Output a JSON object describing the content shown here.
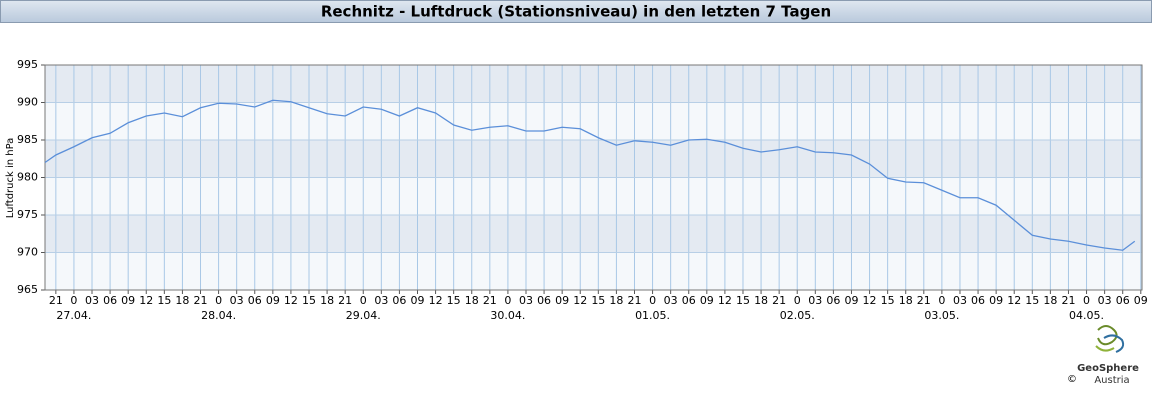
{
  "chart_data": {
    "type": "line",
    "title": "Rechnitz - Luftdruck (Stationsniveau) in den letzten 7 Tagen",
    "ylabel": "Luftdruck in hPa",
    "color": "#5b8fd9",
    "grid": true,
    "xlim": [
      -4.8,
      177.2
    ],
    "ylim": [
      965,
      995
    ],
    "yticks": [
      965,
      970,
      975,
      980,
      985,
      990,
      995
    ],
    "xticks": [
      {
        "value": -3,
        "label": "21"
      },
      {
        "value": 0,
        "label": "0"
      },
      {
        "value": 3,
        "label": "03"
      },
      {
        "value": 6,
        "label": "06"
      },
      {
        "value": 9,
        "label": "09"
      },
      {
        "value": 12,
        "label": "12"
      },
      {
        "value": 15,
        "label": "15"
      },
      {
        "value": 18,
        "label": "18"
      },
      {
        "value": 21,
        "label": "21"
      },
      {
        "value": 24,
        "label": "0"
      },
      {
        "value": 27,
        "label": "03"
      },
      {
        "value": 30,
        "label": "06"
      },
      {
        "value": 33,
        "label": "09"
      },
      {
        "value": 36,
        "label": "12"
      },
      {
        "value": 39,
        "label": "15"
      },
      {
        "value": 42,
        "label": "18"
      },
      {
        "value": 45,
        "label": "21"
      },
      {
        "value": 48,
        "label": "0"
      },
      {
        "value": 51,
        "label": "03"
      },
      {
        "value": 54,
        "label": "06"
      },
      {
        "value": 57,
        "label": "09"
      },
      {
        "value": 60,
        "label": "12"
      },
      {
        "value": 63,
        "label": "15"
      },
      {
        "value": 66,
        "label": "18"
      },
      {
        "value": 69,
        "label": "21"
      },
      {
        "value": 72,
        "label": "0"
      },
      {
        "value": 75,
        "label": "03"
      },
      {
        "value": 78,
        "label": "06"
      },
      {
        "value": 81,
        "label": "09"
      },
      {
        "value": 84,
        "label": "12"
      },
      {
        "value": 87,
        "label": "15"
      },
      {
        "value": 90,
        "label": "18"
      },
      {
        "value": 93,
        "label": "21"
      },
      {
        "value": 96,
        "label": "0"
      },
      {
        "value": 99,
        "label": "03"
      },
      {
        "value": 102,
        "label": "06"
      },
      {
        "value": 105,
        "label": "09"
      },
      {
        "value": 108,
        "label": "12"
      },
      {
        "value": 111,
        "label": "15"
      },
      {
        "value": 114,
        "label": "18"
      },
      {
        "value": 117,
        "label": "21"
      },
      {
        "value": 120,
        "label": "0"
      },
      {
        "value": 123,
        "label": "03"
      },
      {
        "value": 126,
        "label": "06"
      },
      {
        "value": 129,
        "label": "09"
      },
      {
        "value": 132,
        "label": "12"
      },
      {
        "value": 135,
        "label": "15"
      },
      {
        "value": 138,
        "label": "18"
      },
      {
        "value": 141,
        "label": "21"
      },
      {
        "value": 144,
        "label": "0"
      },
      {
        "value": 147,
        "label": "03"
      },
      {
        "value": 150,
        "label": "06"
      },
      {
        "value": 153,
        "label": "09"
      },
      {
        "value": 156,
        "label": "12"
      },
      {
        "value": 159,
        "label": "15"
      },
      {
        "value": 162,
        "label": "18"
      },
      {
        "value": 165,
        "label": "21"
      },
      {
        "value": 168,
        "label": "0"
      },
      {
        "value": 171,
        "label": "03"
      },
      {
        "value": 174,
        "label": "06"
      },
      {
        "value": 177,
        "label": "09"
      }
    ],
    "date_labels": [
      {
        "value": 0,
        "label": "27.04."
      },
      {
        "value": 24,
        "label": "28.04."
      },
      {
        "value": 48,
        "label": "29.04."
      },
      {
        "value": 72,
        "label": "30.04."
      },
      {
        "value": 96,
        "label": "01.05."
      },
      {
        "value": 120,
        "label": "02.05."
      },
      {
        "value": 144,
        "label": "03.05."
      },
      {
        "value": 168,
        "label": "04.05."
      }
    ],
    "x": [
      -4.8,
      -3,
      0,
      3,
      6,
      9,
      12,
      15,
      18,
      21,
      24,
      27,
      30,
      33,
      36,
      39,
      42,
      45,
      48,
      51,
      54,
      57,
      60,
      63,
      66,
      69,
      72,
      75,
      78,
      81,
      84,
      87,
      90,
      93,
      96,
      99,
      102,
      105,
      108,
      111,
      114,
      117,
      120,
      123,
      126,
      129,
      132,
      135,
      138,
      141,
      144,
      147,
      150,
      153,
      156,
      159,
      162,
      165,
      168,
      171,
      174,
      176
    ],
    "values": [
      982.0,
      983.0,
      984.1,
      985.3,
      985.9,
      987.3,
      988.2,
      988.6,
      988.1,
      989.3,
      989.9,
      989.8,
      989.4,
      990.3,
      990.1,
      989.3,
      988.5,
      988.2,
      989.4,
      989.1,
      988.2,
      989.3,
      988.6,
      987.0,
      986.3,
      986.7,
      986.9,
      986.2,
      986.2,
      986.7,
      986.5,
      985.3,
      984.3,
      984.9,
      984.7,
      984.3,
      985.0,
      985.1,
      984.7,
      983.9,
      983.4,
      983.7,
      984.1,
      983.4,
      983.3,
      983.0,
      981.8,
      979.9,
      979.4,
      979.3,
      978.3,
      977.3,
      977.3,
      976.3,
      974.3,
      972.3,
      971.8,
      971.5,
      971.0,
      970.6,
      970.3,
      971.5
    ]
  },
  "footer": {
    "brand": "GeoSphere",
    "sub": "Austria",
    "copyright": "©"
  }
}
